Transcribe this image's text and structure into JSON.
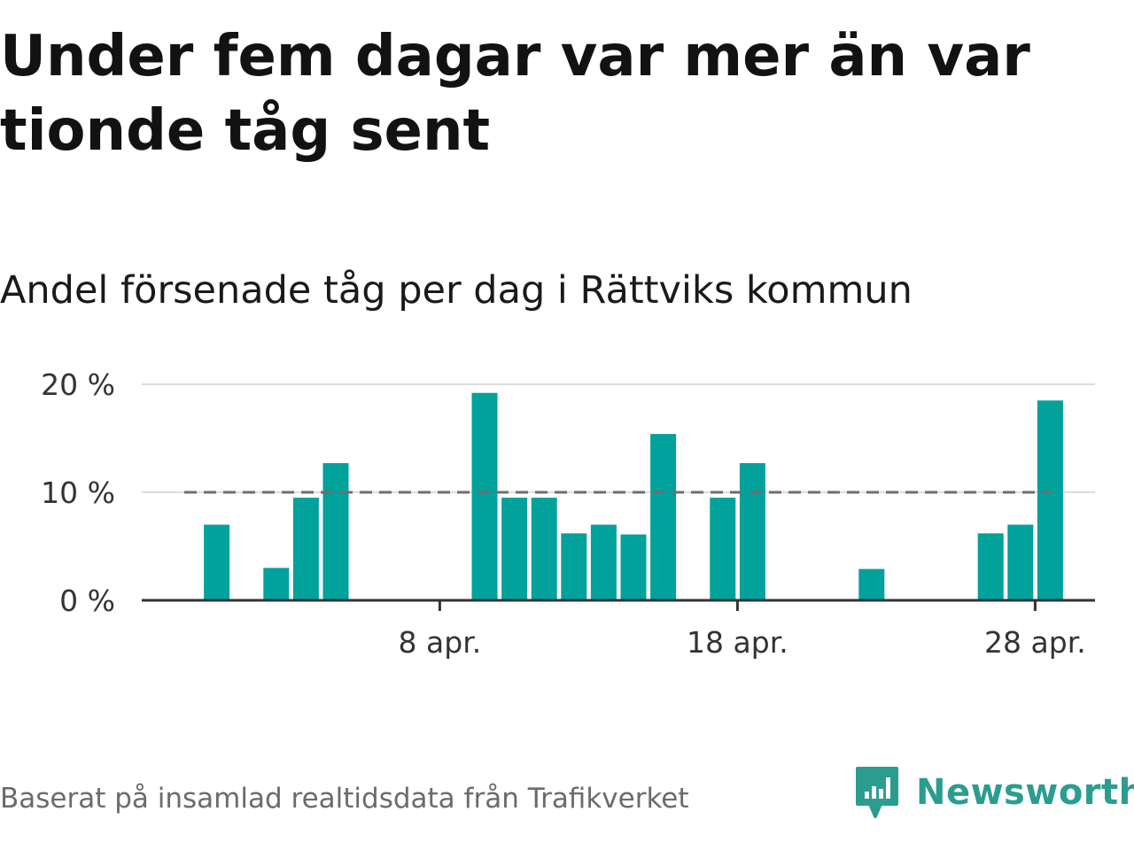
{
  "title": "Under fem dagar var mer än var tionde tåg sent",
  "subtitle": "Andel försenade tåg per dag i Rättviks kommun",
  "source": "Baserat på insamlad realtidsdata från Trafikverket",
  "brand": {
    "name": "Newsworthy",
    "icon": "newsworthy-logo-icon",
    "color": "#2a9d8f"
  },
  "colors": {
    "bar": "#00a29b",
    "reference": "#6e6e6e",
    "grid": "#dddddd",
    "axis": "#333333"
  },
  "chart_data": {
    "type": "bar",
    "categories": [
      "30 mar.",
      "31 mar.",
      "1 apr.",
      "2 apr.",
      "3 apr.",
      "4 apr.",
      "5 apr.",
      "6 apr.",
      "7 apr.",
      "8 apr.",
      "9 apr.",
      "10 apr.",
      "11 apr.",
      "12 apr.",
      "13 apr.",
      "14 apr.",
      "15 apr.",
      "16 apr.",
      "17 apr.",
      "18 apr.",
      "19 apr.",
      "20 apr.",
      "21 apr.",
      "22 apr.",
      "23 apr.",
      "24 apr.",
      "25 apr.",
      "26 apr.",
      "27 apr.",
      "28 apr.",
      "29 apr.",
      "30 apr."
    ],
    "values": [
      null,
      7.0,
      null,
      3.0,
      9.5,
      12.7,
      null,
      null,
      null,
      null,
      19.2,
      9.5,
      9.5,
      6.2,
      7.0,
      6.1,
      15.4,
      null,
      9.5,
      12.7,
      null,
      null,
      null,
      2.9,
      null,
      null,
      null,
      6.2,
      7.0,
      18.5,
      null,
      null
    ],
    "ylim": [
      0,
      20
    ],
    "y_ticks": [
      0,
      10,
      20
    ],
    "y_tick_labels": [
      "0 %",
      "10 %",
      "20 %"
    ],
    "x_ticks": [
      "8 apr.",
      "18 apr.",
      "28 apr."
    ],
    "reference_line": 10,
    "grid": true,
    "legend": "none"
  }
}
